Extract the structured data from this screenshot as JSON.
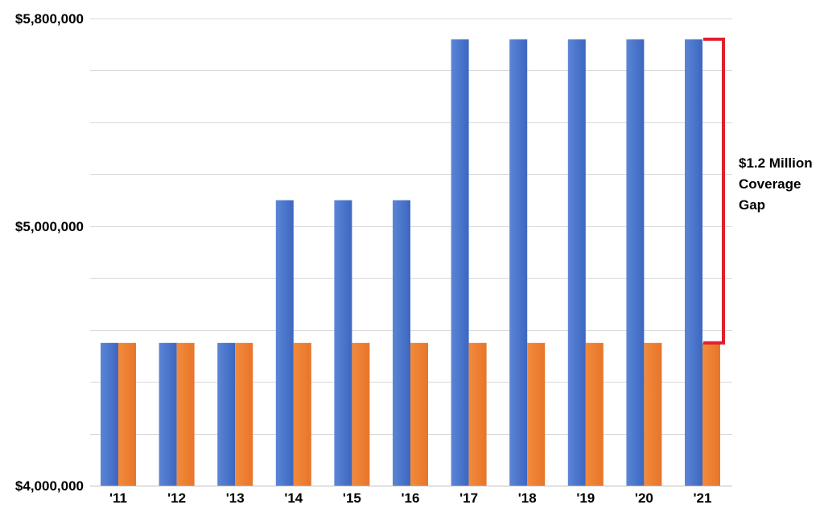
{
  "chart_data": {
    "type": "bar",
    "categories": [
      "'11",
      "'12",
      "'13",
      "'14",
      "'15",
      "'16",
      "'17",
      "'18",
      "'19",
      "'20",
      "'21"
    ],
    "series": [
      {
        "values": [
          4550000,
          4550000,
          4550000,
          5100000,
          5100000,
          5100000,
          5720000,
          5720000,
          5720000,
          5720000,
          5720000
        ]
      },
      {
        "values": [
          4550000,
          4550000,
          4550000,
          4550000,
          4550000,
          4550000,
          4550000,
          4550000,
          4550000,
          4550000,
          4550000
        ]
      }
    ],
    "colors": [
      "#4472C4",
      "#ED7D31"
    ],
    "bracket_color": "#E0202E",
    "ylim": [
      4000000,
      5800000
    ],
    "ytick_labels": [
      "$4,000,000",
      "$5,000,000",
      "$5,800,000"
    ],
    "ytick_values": [
      4000000,
      5000000,
      5800000
    ],
    "grid": true,
    "gridline_step": 200000,
    "annotation": {
      "lines": [
        "$1.2 Million",
        "Coverage",
        "Gap"
      ]
    }
  }
}
